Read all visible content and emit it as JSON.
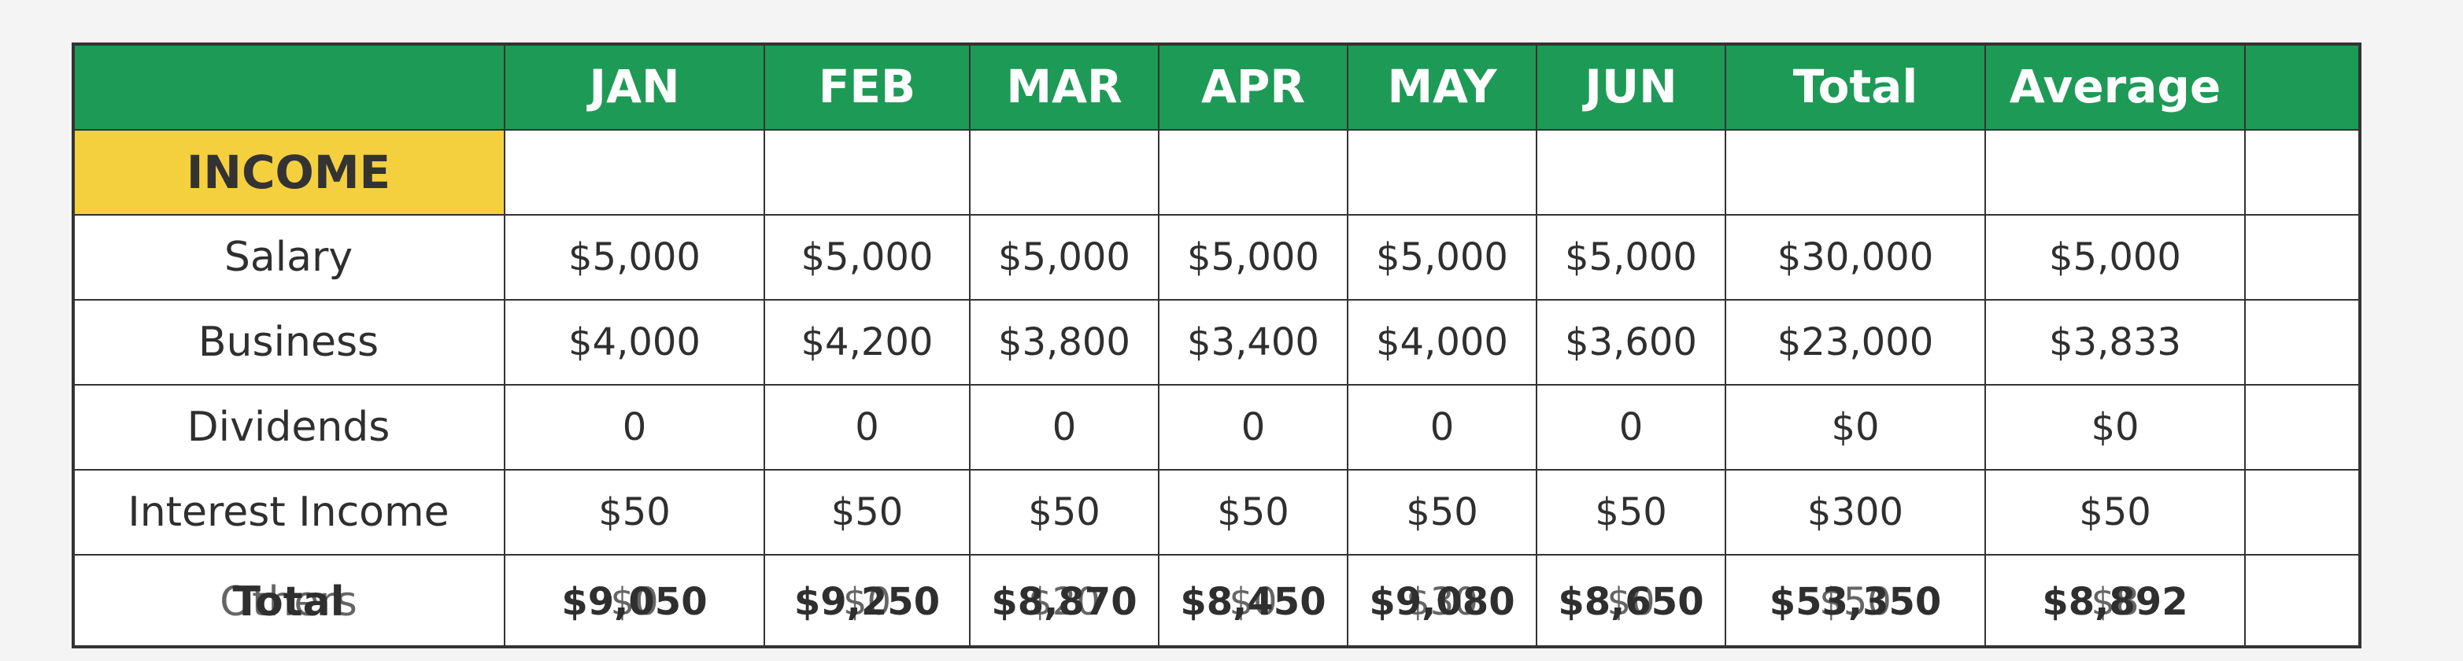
{
  "columns": [
    "",
    "JAN",
    "FEB",
    "MAR",
    "APR",
    "MAY",
    "JUN",
    "Total",
    "Average",
    ""
  ],
  "section_label": "INCOME",
  "rows": [
    {
      "label": "Salary",
      "values": [
        "$5,000",
        "$5,000",
        "$5,000",
        "$5,000",
        "$5,000",
        "$5,000",
        "$30,000",
        "$5,000",
        ""
      ]
    },
    {
      "label": "Business",
      "values": [
        "$4,000",
        "$4,200",
        "$3,800",
        "$3,400",
        "$4,000",
        "$3,600",
        "$23,000",
        "$3,833",
        ""
      ]
    },
    {
      "label": "Dividends",
      "values": [
        "0",
        "0",
        "0",
        "0",
        "0",
        "0",
        "$0",
        "$0",
        ""
      ]
    },
    {
      "label": "Interest Income",
      "values": [
        "$50",
        "$50",
        "$50",
        "$50",
        "$50",
        "$50",
        "$300",
        "$50",
        ""
      ]
    }
  ],
  "overlap_row": {
    "under_label": "Others",
    "under_values": [
      "$0",
      "$0",
      "$20",
      "$0",
      "$30",
      "$0",
      "$50",
      "$8",
      ""
    ],
    "over_label": "Total",
    "over_values": [
      "$9,050",
      "$9,250",
      "$8,870",
      "$8,450",
      "$9,080",
      "$8,650",
      "$53,350",
      "$8,892",
      ""
    ]
  },
  "colors": {
    "header_bg": "#1e9a57",
    "income_bg": "#f4d03f",
    "border": "#333333"
  }
}
